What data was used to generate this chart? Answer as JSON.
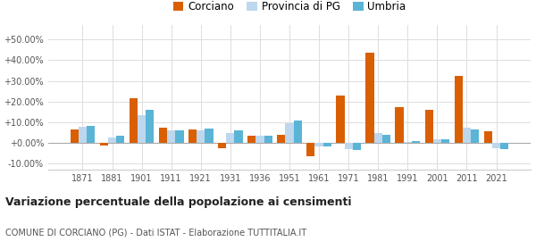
{
  "years": [
    1871,
    1881,
    1901,
    1911,
    1921,
    1931,
    1936,
    1951,
    1961,
    1971,
    1981,
    1991,
    2001,
    2011,
    2021
  ],
  "corciano": [
    6.5,
    -1.0,
    21.5,
    7.5,
    6.5,
    -2.5,
    3.5,
    4.0,
    -6.5,
    23.0,
    43.5,
    17.5,
    16.0,
    32.5,
    5.5
  ],
  "provincia_pg": [
    8.0,
    2.5,
    13.5,
    6.0,
    6.0,
    5.0,
    3.5,
    9.5,
    -1.5,
    -3.0,
    5.0,
    0.5,
    2.0,
    7.5,
    -2.5
  ],
  "umbria": [
    8.5,
    3.5,
    16.0,
    6.0,
    7.0,
    6.0,
    3.5,
    11.0,
    -1.5,
    -3.5,
    4.0,
    1.0,
    2.0,
    6.5,
    -3.0
  ],
  "color_corciano": "#d95f02",
  "color_provincia": "#bdd7ee",
  "color_umbria": "#5ab4d6",
  "title_main": "Variazione percentuale della popolazione ai censimenti",
  "title_sub": "COMUNE DI CORCIANO (PG) - Dati ISTAT - Elaborazione TUTTITALIA.IT",
  "legend_labels": [
    "Corciano",
    "Provincia di PG",
    "Umbria"
  ],
  "yticks": [
    -10,
    0,
    10,
    20,
    30,
    40,
    50
  ],
  "ylim": [
    -13,
    57
  ],
  "bar_width": 0.28
}
